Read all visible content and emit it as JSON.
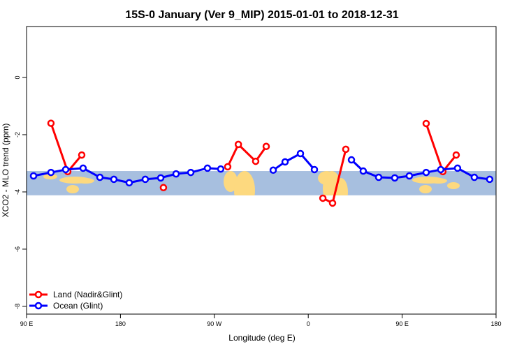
{
  "chart_data": {
    "type": "line",
    "title": "15S-0 January (Ver 9_MIP)   2015-01-01 to 2018-12-31",
    "xlabel": "Longitude (deg E)",
    "ylabel": "XCO2 - MLO trend (ppm)",
    "xlim": [
      90,
      540
    ],
    "xticks": [
      {
        "value": 90,
        "label": "90 E"
      },
      180,
      {
        "value": 270,
        "label": "90 W"
      },
      {
        "value": 360,
        "label": "0"
      },
      {
        "value": 450,
        "label": "90 E"
      },
      {
        "value": 540,
        "label": "180"
      }
    ],
    "ylim": [
      -8.27,
      1.78
    ],
    "yticks": [
      0,
      -2,
      -4,
      -6,
      -8
    ],
    "background_band_ylim": [
      -4.12,
      -3.27
    ],
    "legend": "bottom-left",
    "series": [
      {
        "name": "Land (Nadir&Glint)",
        "color": "#ff0000",
        "x": [
          113.4,
          129.5,
          142.9,
          null,
          221.2,
          null,
          282.8,
          293,
          309.6,
          319.7,
          null,
          374,
          383.3,
          396,
          null,
          473,
          489,
          501.8
        ],
        "values": [
          -1.6,
          -3.29,
          -2.71,
          null,
          -3.85,
          null,
          -3.12,
          -2.34,
          -2.93,
          -2.41,
          null,
          -4.22,
          -4.39,
          -2.51,
          null,
          -1.61,
          -3.29,
          -2.71
        ]
      },
      {
        "name": "Ocean (Glint)",
        "color": "#0000ff",
        "x": [
          96.7,
          113.4,
          127.5,
          144.2,
          160.3,
          173.7,
          188.4,
          203.8,
          218.6,
          233.3,
          247.4,
          263.4,
          276.1,
          null,
          326.4,
          337.8,
          352.5,
          365.9,
          null,
          401.4,
          412.7,
          427.5,
          442.9,
          456.9,
          473,
          487,
          503.1,
          519.2,
          533.9
        ],
        "values": [
          -3.44,
          -3.32,
          -3.22,
          -3.17,
          -3.49,
          -3.56,
          -3.68,
          -3.56,
          -3.51,
          -3.37,
          -3.32,
          -3.17,
          -3.2,
          null,
          -3.24,
          -2.95,
          -2.66,
          -3.22,
          null,
          -2.88,
          -3.27,
          -3.49,
          -3.51,
          -3.44,
          -3.32,
          -3.22,
          -3.17,
          -3.49,
          -3.56
        ]
      }
    ]
  }
}
